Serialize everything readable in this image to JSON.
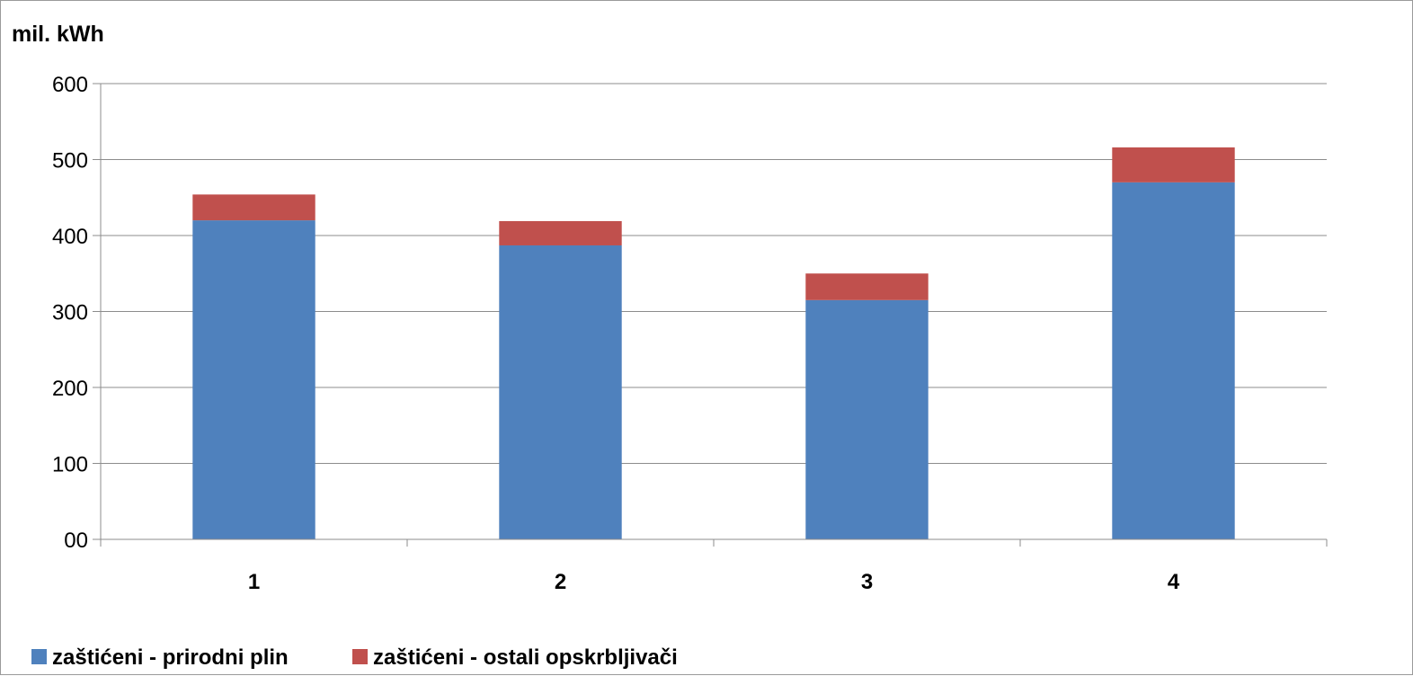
{
  "chart_data": {
    "type": "bar",
    "stacked": true,
    "ylabel": "mil. kWh",
    "ylim": [
      0,
      600
    ],
    "yticks": [
      0,
      100,
      200,
      300,
      400,
      500,
      600
    ],
    "ytick_labels": [
      "00",
      "100",
      "200",
      "300",
      "400",
      "500",
      "600"
    ],
    "categories": [
      "1",
      "2",
      "3",
      "4"
    ],
    "series": [
      {
        "name": "zaštićeni - prirodni plin",
        "color": "#4f81bd",
        "values": [
          420,
          387,
          315,
          470
        ]
      },
      {
        "name": "zaštićeni - ostali opskrbljivači",
        "color": "#c0504d",
        "values": [
          34,
          32,
          35,
          46
        ]
      }
    ],
    "grid": true,
    "legend": "bottom-left"
  }
}
